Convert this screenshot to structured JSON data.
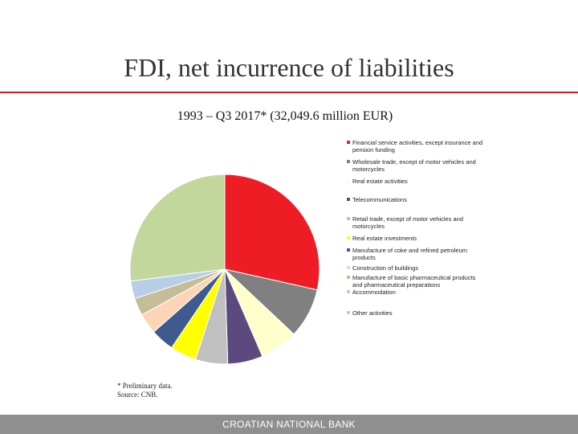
{
  "chart_data": {
    "type": "pie",
    "title": "FDI, net incurrence of liabilities",
    "subtitle": "1993 – Q3 2017* (32,049.6 million EUR)",
    "start_angle_deg": 0,
    "direction": "clockwise",
    "legend_position": "right",
    "slices": [
      {
        "label": "Financial service activities, except insurance and pension funding",
        "value": 28.5,
        "color": "#ee1c25"
      },
      {
        "label": "Wholesale trade, except of motor vehicles and motorcycles",
        "value": 8.5,
        "color": "#808080"
      },
      {
        "label": "Real estate activities",
        "value": 6.5,
        "color": "#ffffcc"
      },
      {
        "label": "Telecommunications",
        "value": 6.0,
        "color": "#5c4a7e"
      },
      {
        "label": "Retail trade, except of motor vehicles and motorcycles",
        "value": 5.5,
        "color": "#c0c0c0"
      },
      {
        "label": "Real estate investments",
        "value": 4.5,
        "color": "#ffff00"
      },
      {
        "label": "Manufacture of coke and refined petroleum products",
        "value": 4.0,
        "color": "#3e5a8e"
      },
      {
        "label": "Construction of buildings",
        "value": 3.5,
        "color": "#fbd5b5"
      },
      {
        "label": "Manufacture of basic pharmaceutical products and pharmaceutical preparations",
        "value": 3.0,
        "color": "#c4bd97"
      },
      {
        "label": "Accommodation",
        "value": 3.0,
        "color": "#b7cee6"
      },
      {
        "label": "Other activities",
        "value": 27.0,
        "color": "#c3d69b"
      }
    ]
  },
  "notes": {
    "line1": "* Preliminary data.",
    "line2": "Source: CNB."
  },
  "footer": {
    "text": "CROATIAN NATIONAL BANK"
  }
}
